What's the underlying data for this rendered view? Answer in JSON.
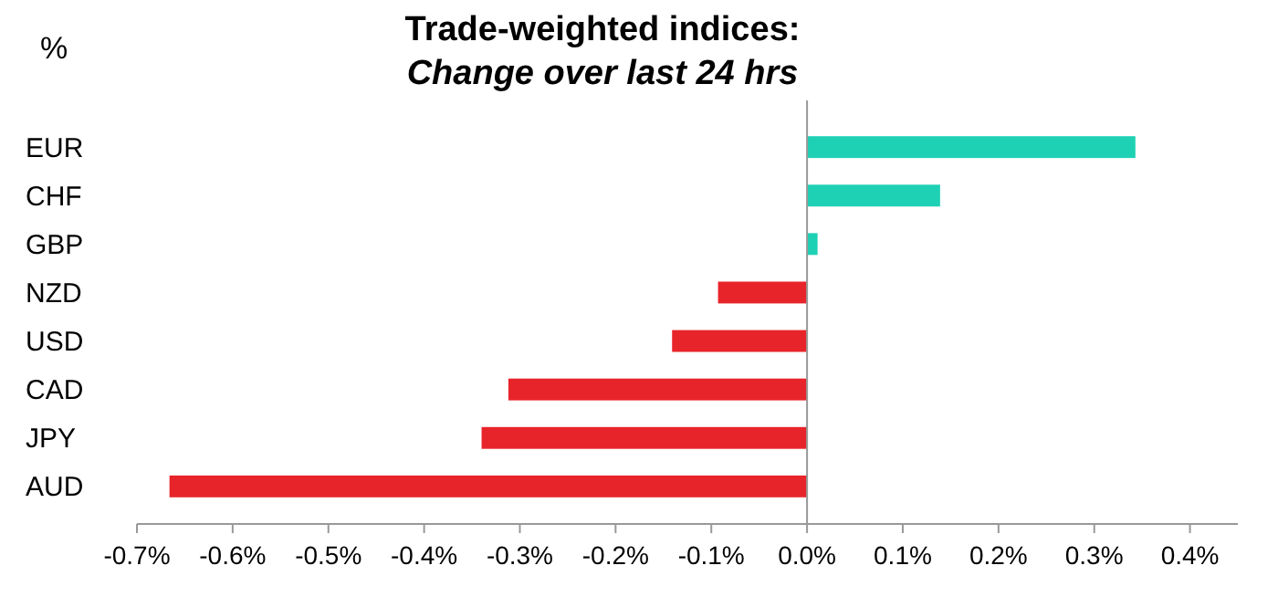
{
  "chart_data": {
    "type": "bar",
    "orientation": "horizontal",
    "title": "Trade-weighted indices:",
    "subtitle": "Change over last 24 hrs",
    "ylabel": "%",
    "categories": [
      "EUR",
      "CHF",
      "GBP",
      "NZD",
      "USD",
      "CAD",
      "JPY",
      "AUD"
    ],
    "values": [
      0.343,
      0.139,
      0.011,
      -0.093,
      -0.141,
      -0.312,
      -0.34,
      -0.666
    ],
    "colors": [
      "#1fd1b4",
      "#1fd1b4",
      "#1fd1b4",
      "#e8242b",
      "#e8242b",
      "#e8242b",
      "#e8242b",
      "#e8242b"
    ],
    "xlim": [
      -0.7,
      0.45
    ],
    "xticks": [
      {
        "value": -0.7,
        "label": "-0.7%"
      },
      {
        "value": -0.6,
        "label": "-0.6%"
      },
      {
        "value": -0.5,
        "label": "-0.5%"
      },
      {
        "value": -0.4,
        "label": "-0.4%"
      },
      {
        "value": -0.3,
        "label": "-0.3%"
      },
      {
        "value": -0.2,
        "label": "-0.2%"
      },
      {
        "value": -0.1,
        "label": "-0.1%"
      },
      {
        "value": 0,
        "label": "0.0%"
      },
      {
        "value": 0.1,
        "label": "0.1%"
      },
      {
        "value": 0.2,
        "label": "0.2%"
      },
      {
        "value": 0.3,
        "label": "0.3%"
      },
      {
        "value": 0.4,
        "label": "0.4%"
      }
    ],
    "tick_labels": true
  }
}
